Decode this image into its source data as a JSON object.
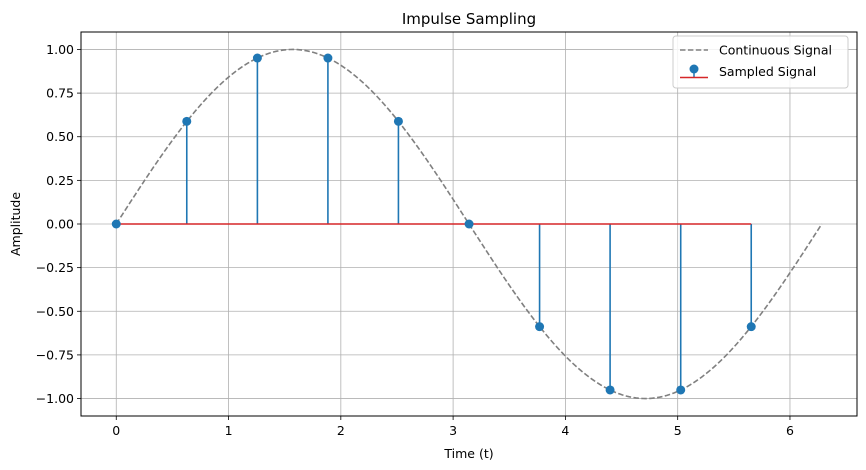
{
  "chart_data": {
    "type": "line",
    "title": "Impulse Sampling",
    "xlabel": "Time (t)",
    "ylabel": "Amplitude",
    "xlim": [
      -0.314,
      6.597
    ],
    "ylim": [
      -1.1,
      1.1
    ],
    "xticks": [
      0,
      1,
      2,
      3,
      4,
      5,
      6
    ],
    "yticks": [
      -1.0,
      -0.75,
      -0.5,
      -0.25,
      0.0,
      0.25,
      0.5,
      0.75,
      1.0
    ],
    "ytick_labels": [
      "−1.00",
      "−0.75",
      "−0.50",
      "−0.25",
      "0.00",
      "0.25",
      "0.50",
      "0.75",
      "1.00"
    ],
    "grid": true,
    "legend_position": "top-right",
    "series": [
      {
        "name": "Continuous Signal",
        "kind": "line",
        "style": "dashed",
        "color": "#808080",
        "function": "sin",
        "x_range": [
          0,
          6.283
        ]
      },
      {
        "name": "Sampled Signal",
        "kind": "stem",
        "marker_color": "#1f77b4",
        "stem_color": "#1f77b4",
        "baseline_color": "#d62728",
        "x": [
          0,
          0.628,
          1.257,
          1.885,
          2.513,
          3.142,
          3.77,
          4.398,
          5.027,
          5.655
        ],
        "y": [
          0,
          0.588,
          0.951,
          0.951,
          0.588,
          0.0,
          -0.588,
          -0.951,
          -0.951,
          -0.588
        ]
      }
    ]
  }
}
